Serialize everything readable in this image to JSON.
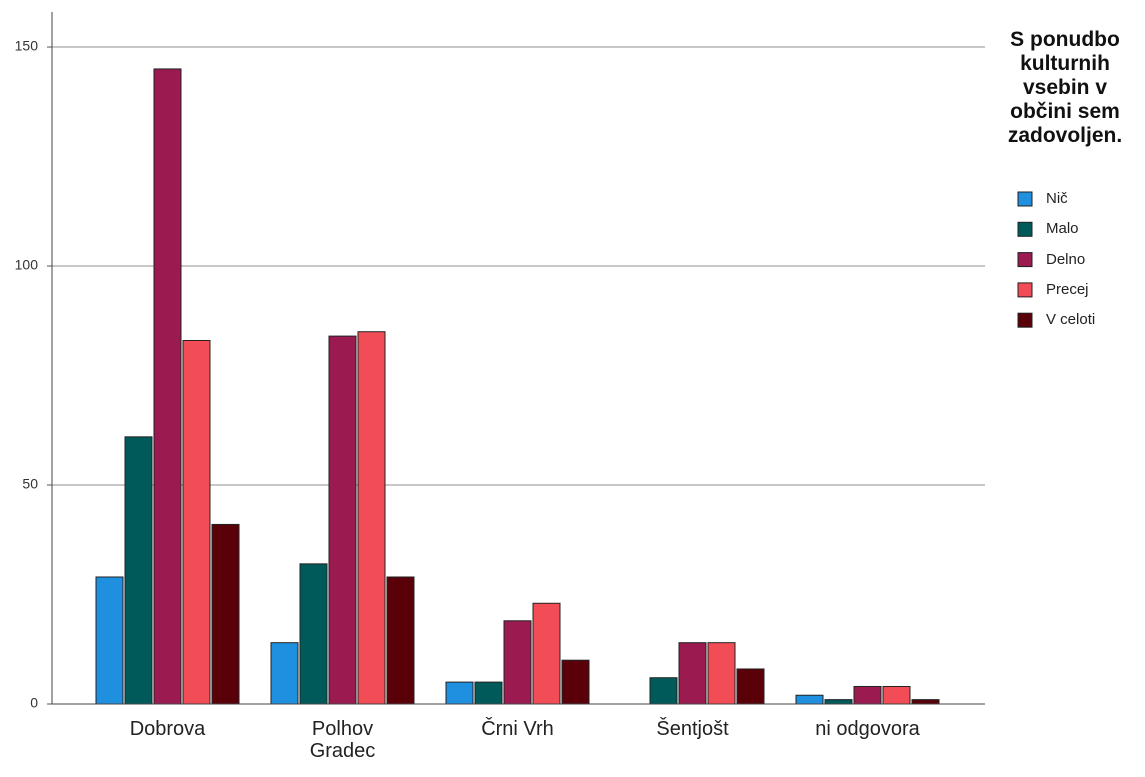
{
  "chart_data": {
    "type": "bar",
    "legend_title": "S ponudbo kulturnih vsebin v občini sem zadovoljen.",
    "categories": [
      "Dobrova",
      "Polhov Gradec",
      "Črni Vrh",
      "Šentjošt",
      "ni odgovora"
    ],
    "series": [
      {
        "name": "Nič",
        "color": "#1f8fe0",
        "values": [
          29,
          14,
          5,
          0,
          2
        ]
      },
      {
        "name": "Malo",
        "color": "#005a5a",
        "values": [
          61,
          32,
          5,
          6,
          1
        ]
      },
      {
        "name": "Delno",
        "color": "#9b1a4f",
        "values": [
          145,
          84,
          19,
          14,
          4
        ]
      },
      {
        "name": "Precej",
        "color": "#f24c56",
        "values": [
          83,
          85,
          23,
          14,
          4
        ]
      },
      {
        "name": "V celoti",
        "color": "#590009",
        "values": [
          41,
          29,
          10,
          8,
          1
        ]
      }
    ],
    "ylim": [
      0,
      158
    ],
    "yticks": [
      0,
      50,
      100,
      150
    ],
    "grid": true,
    "legend": "right"
  }
}
